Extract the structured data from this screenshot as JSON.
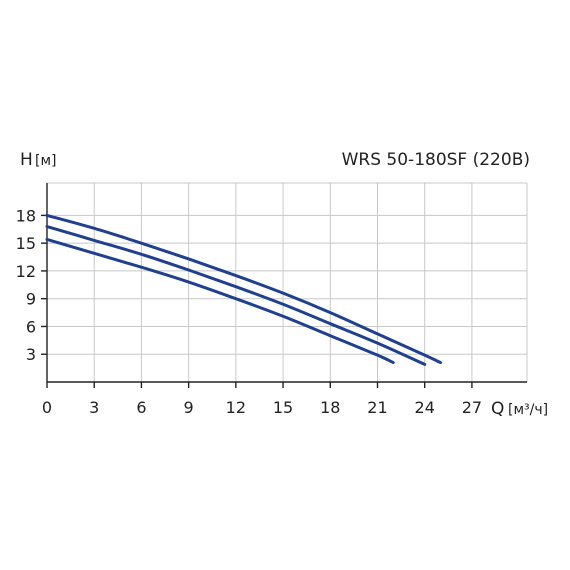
{
  "chart_data": {
    "type": "line",
    "title": "WRS 50-180SF (220В)",
    "ylabel": "H",
    "ylabel_unit": "[м]",
    "xlabel": "Q",
    "xlabel_unit": "[м³/ч]",
    "xlim": [
      0,
      30.5
    ],
    "ylim": [
      0,
      21.5
    ],
    "xticks": [
      0,
      3,
      6,
      9,
      12,
      15,
      18,
      21,
      24,
      27
    ],
    "yticks": [
      3,
      6,
      9,
      12,
      15,
      18
    ],
    "grid": true,
    "line_color": "#1f3f8f",
    "series": [
      {
        "x": [
          0,
          3,
          6,
          9,
          12,
          15,
          18,
          21,
          24,
          25
        ],
        "y": [
          18.0,
          16.6,
          15.0,
          13.3,
          11.5,
          9.6,
          7.5,
          5.2,
          2.9,
          2.1
        ]
      },
      {
        "x": [
          0,
          3,
          6,
          9,
          12,
          15,
          18,
          21,
          24
        ],
        "y": [
          16.8,
          15.3,
          13.8,
          12.1,
          10.3,
          8.4,
          6.3,
          4.2,
          1.9
        ]
      },
      {
        "x": [
          0,
          3,
          6,
          9,
          12,
          15,
          18,
          21,
          22
        ],
        "y": [
          15.4,
          13.9,
          12.4,
          10.8,
          9.0,
          7.1,
          5.0,
          2.9,
          2.1
        ]
      }
    ]
  }
}
